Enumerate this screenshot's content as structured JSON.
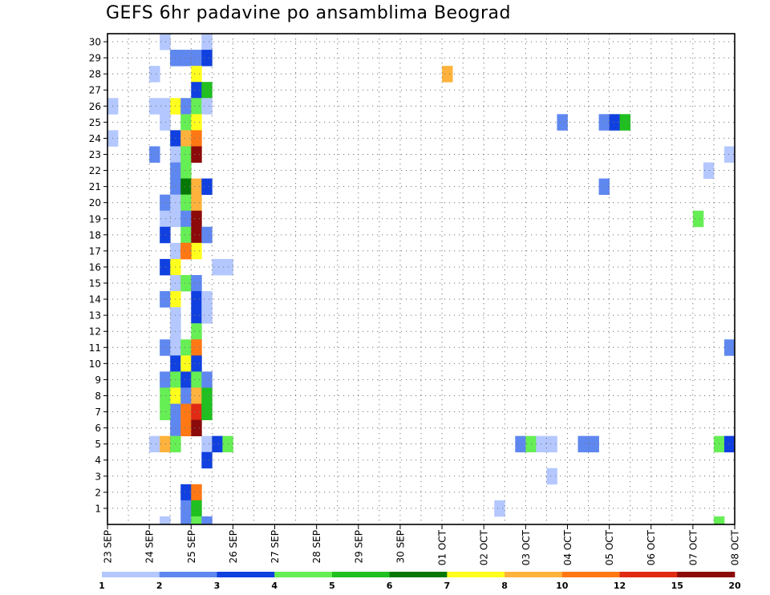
{
  "chart_data": {
    "type": "heatmap",
    "title": "GEFS 6hr padavine po ansamblima Beograd",
    "xlabel": "",
    "ylabel": "",
    "x_ticks": [
      "23 SEP",
      "24 SEP",
      "25 SEP",
      "26 SEP",
      "27 SEP",
      "28 SEP",
      "29 SEP",
      "30 SEP",
      "01 OCT",
      "02 OCT",
      "03 OCT",
      "04 OCT",
      "05 OCT",
      "06 OCT",
      "07 OCT",
      "08 OCT"
    ],
    "y_ticks": [
      1,
      2,
      3,
      4,
      5,
      6,
      7,
      8,
      9,
      10,
      11,
      12,
      13,
      14,
      15,
      16,
      17,
      18,
      19,
      20,
      21,
      22,
      23,
      24,
      25,
      26,
      27,
      28,
      29,
      30
    ],
    "xlim": [
      "23 SEP 00",
      "08 OCT 00"
    ],
    "ylim": [
      0,
      30
    ],
    "grid": true,
    "steps_per_day": 4,
    "color_scale": {
      "levels": [
        1,
        2,
        3,
        4,
        5,
        6,
        7,
        8,
        10,
        12,
        15,
        20
      ],
      "colors": [
        "#b4c8ff",
        "#5f87f0",
        "#1040e0",
        "#66ee55",
        "#20c020",
        "#067806",
        "#ffff1e",
        "#ffb23c",
        "#ff7814",
        "#e02a14",
        "#8c0a0a"
      ]
    },
    "cells": [
      {
        "m": 30,
        "t": "24 SEP 06",
        "v": 1.5
      },
      {
        "m": 30,
        "t": "25 SEP 06",
        "v": 1.5
      },
      {
        "m": 29,
        "t": "24 SEP 12",
        "v": 2.5
      },
      {
        "m": 29,
        "t": "24 SEP 18",
        "v": 2.5
      },
      {
        "m": 29,
        "t": "25 SEP 00",
        "v": 2.5
      },
      {
        "m": 29,
        "t": "25 SEP 06",
        "v": 3.5
      },
      {
        "m": 28,
        "t": "24 SEP 00",
        "v": 1.5
      },
      {
        "m": 28,
        "t": "25 SEP 00",
        "v": 7.5
      },
      {
        "m": 28,
        "t": "01 OCT 00",
        "v": 9
      },
      {
        "m": 27,
        "t": "25 SEP 00",
        "v": 3.5
      },
      {
        "m": 27,
        "t": "25 SEP 06",
        "v": 5.5
      },
      {
        "m": 26,
        "t": "23 SEP 00",
        "v": 1.5
      },
      {
        "m": 26,
        "t": "24 SEP 00",
        "v": 1.5
      },
      {
        "m": 26,
        "t": "24 SEP 06",
        "v": 1.5
      },
      {
        "m": 26,
        "t": "24 SEP 12",
        "v": 7.5
      },
      {
        "m": 26,
        "t": "24 SEP 18",
        "v": 2.5
      },
      {
        "m": 26,
        "t": "25 SEP 00",
        "v": 4.5
      },
      {
        "m": 26,
        "t": "25 SEP 06",
        "v": 1.5
      },
      {
        "m": 25,
        "t": "24 SEP 06",
        "v": 1.5
      },
      {
        "m": 25,
        "t": "24 SEP 18",
        "v": 4.5
      },
      {
        "m": 25,
        "t": "25 SEP 00",
        "v": 7.5
      },
      {
        "m": 25,
        "t": "03 OCT 18",
        "v": 2.5
      },
      {
        "m": 25,
        "t": "04 OCT 18",
        "v": 2.5
      },
      {
        "m": 25,
        "t": "05 OCT 00",
        "v": 3.5
      },
      {
        "m": 25,
        "t": "05 OCT 06",
        "v": 5.5
      },
      {
        "m": 24,
        "t": "23 SEP 00",
        "v": 1.5
      },
      {
        "m": 24,
        "t": "24 SEP 12",
        "v": 3.5
      },
      {
        "m": 24,
        "t": "24 SEP 18",
        "v": 9
      },
      {
        "m": 24,
        "t": "25 SEP 00",
        "v": 11
      },
      {
        "m": 23,
        "t": "24 SEP 00",
        "v": 2.5
      },
      {
        "m": 23,
        "t": "24 SEP 12",
        "v": 1.5
      },
      {
        "m": 23,
        "t": "24 SEP 18",
        "v": 4.5
      },
      {
        "m": 23,
        "t": "25 SEP 00",
        "v": 25
      },
      {
        "m": 23,
        "t": "07 OCT 18",
        "v": 1.5
      },
      {
        "m": 22,
        "t": "24 SEP 12",
        "v": 2.5
      },
      {
        "m": 22,
        "t": "24 SEP 18",
        "v": 4.5
      },
      {
        "m": 22,
        "t": "07 OCT 06",
        "v": 1.5
      },
      {
        "m": 21,
        "t": "24 SEP 12",
        "v": 2.5
      },
      {
        "m": 21,
        "t": "24 SEP 18",
        "v": 6.5
      },
      {
        "m": 21,
        "t": "25 SEP 00",
        "v": 9
      },
      {
        "m": 21,
        "t": "25 SEP 06",
        "v": 3.5
      },
      {
        "m": 21,
        "t": "04 OCT 18",
        "v": 2.5
      },
      {
        "m": 20,
        "t": "24 SEP 06",
        "v": 2.5
      },
      {
        "m": 20,
        "t": "24 SEP 12",
        "v": 1.5
      },
      {
        "m": 20,
        "t": "24 SEP 18",
        "v": 4.5
      },
      {
        "m": 20,
        "t": "25 SEP 00",
        "v": 9
      },
      {
        "m": 19,
        "t": "24 SEP 06",
        "v": 1.5
      },
      {
        "m": 19,
        "t": "24 SEP 12",
        "v": 1.5
      },
      {
        "m": 19,
        "t": "24 SEP 18",
        "v": 2.5
      },
      {
        "m": 19,
        "t": "25 SEP 00",
        "v": 17
      },
      {
        "m": 19,
        "t": "07 OCT 00",
        "v": 4.5
      },
      {
        "m": 18,
        "t": "24 SEP 06",
        "v": 3.5
      },
      {
        "m": 18,
        "t": "24 SEP 18",
        "v": 4.5
      },
      {
        "m": 18,
        "t": "25 SEP 00",
        "v": 17
      },
      {
        "m": 18,
        "t": "25 SEP 06",
        "v": 2.5
      },
      {
        "m": 17,
        "t": "24 SEP 12",
        "v": 1.5
      },
      {
        "m": 17,
        "t": "24 SEP 18",
        "v": 11
      },
      {
        "m": 17,
        "t": "25 SEP 00",
        "v": 7.5
      },
      {
        "m": 16,
        "t": "24 SEP 06",
        "v": 3.5
      },
      {
        "m": 16,
        "t": "24 SEP 12",
        "v": 7.5
      },
      {
        "m": 16,
        "t": "25 SEP 12",
        "v": 1.5
      },
      {
        "m": 16,
        "t": "25 SEP 18",
        "v": 1.5
      },
      {
        "m": 15,
        "t": "24 SEP 12",
        "v": 1.5
      },
      {
        "m": 15,
        "t": "24 SEP 18",
        "v": 4.5
      },
      {
        "m": 15,
        "t": "25 SEP 00",
        "v": 2.5
      },
      {
        "m": 14,
        "t": "24 SEP 06",
        "v": 2.5
      },
      {
        "m": 14,
        "t": "24 SEP 12",
        "v": 7.5
      },
      {
        "m": 14,
        "t": "25 SEP 00",
        "v": 3.5
      },
      {
        "m": 14,
        "t": "25 SEP 06",
        "v": 1.5
      },
      {
        "m": 13,
        "t": "24 SEP 12",
        "v": 1.5
      },
      {
        "m": 13,
        "t": "25 SEP 00",
        "v": 3.5
      },
      {
        "m": 13,
        "t": "25 SEP 06",
        "v": 1.5
      },
      {
        "m": 12,
        "t": "24 SEP 12",
        "v": 1.5
      },
      {
        "m": 12,
        "t": "25 SEP 00",
        "v": 4.5
      },
      {
        "m": 11,
        "t": "24 SEP 06",
        "v": 2.5
      },
      {
        "m": 11,
        "t": "24 SEP 12",
        "v": 1.5
      },
      {
        "m": 11,
        "t": "24 SEP 18",
        "v": 4.5
      },
      {
        "m": 11,
        "t": "25 SEP 00",
        "v": 11
      },
      {
        "m": 11,
        "t": "07 OCT 18",
        "v": 2.5
      },
      {
        "m": 10,
        "t": "24 SEP 12",
        "v": 3.5
      },
      {
        "m": 10,
        "t": "24 SEP 18",
        "v": 7.5
      },
      {
        "m": 10,
        "t": "25 SEP 00",
        "v": 3.5
      },
      {
        "m": 9,
        "t": "24 SEP 06",
        "v": 2.5
      },
      {
        "m": 9,
        "t": "24 SEP 12",
        "v": 4.5
      },
      {
        "m": 9,
        "t": "24 SEP 18",
        "v": 3.5
      },
      {
        "m": 9,
        "t": "25 SEP 00",
        "v": 4.5
      },
      {
        "m": 9,
        "t": "25 SEP 06",
        "v": 2.5
      },
      {
        "m": 8,
        "t": "24 SEP 06",
        "v": 4.5
      },
      {
        "m": 8,
        "t": "24 SEP 12",
        "v": 7.5
      },
      {
        "m": 8,
        "t": "24 SEP 18",
        "v": 2.5
      },
      {
        "m": 8,
        "t": "25 SEP 00",
        "v": 9
      },
      {
        "m": 8,
        "t": "25 SEP 06",
        "v": 5.5
      },
      {
        "m": 7,
        "t": "24 SEP 12",
        "v": 2.5
      },
      {
        "m": 7,
        "t": "24 SEP 18",
        "v": 11
      },
      {
        "m": 7,
        "t": "25 SEP 00",
        "v": 13
      },
      {
        "m": 6,
        "t": "24 SEP 12",
        "v": 2.5
      },
      {
        "m": 5,
        "t": "24 SEP 00",
        "v": 1.5
      },
      {
        "m": 5,
        "t": "24 SEP 06",
        "v": 9
      },
      {
        "m": 5,
        "t": "24 SEP 12",
        "v": 4.5
      },
      {
        "m": 5,
        "t": "25 SEP 06",
        "v": 1.5
      },
      {
        "m": 5,
        "t": "25 SEP 12",
        "v": 3.5
      },
      {
        "m": 5,
        "t": "25 SEP 18",
        "v": 4.5
      },
      {
        "m": 5,
        "t": "02 OCT 18",
        "v": 2.5
      },
      {
        "m": 5,
        "t": "03 OCT 00",
        "v": 4.5
      },
      {
        "m": 5,
        "t": "03 OCT 06",
        "v": 1.5
      },
      {
        "m": 5,
        "t": "03 OCT 12",
        "v": 1.5
      },
      {
        "m": 5,
        "t": "04 OCT 06",
        "v": 2.5
      },
      {
        "m": 5,
        "t": "04 OCT 12",
        "v": 2.5
      },
      {
        "m": 5,
        "t": "07 OCT 12",
        "v": 4.5
      },
      {
        "m": 5,
        "t": "07 OCT 18",
        "v": 3.5
      },
      {
        "m": 4,
        "t": "25 SEP 06",
        "v": 3.5
      },
      {
        "m": 3,
        "t": "03 OCT 12",
        "v": 1.5
      },
      {
        "m": 2,
        "t": "24 SEP 18",
        "v": 3.5
      },
      {
        "m": 2,
        "t": "25 SEP 00",
        "v": 11
      },
      {
        "m": 1,
        "t": "24 SEP 18",
        "v": 2.5
      },
      {
        "m": 1,
        "t": "25 SEP 00",
        "v": 5.5
      },
      {
        "m": 1,
        "t": "02 OCT 06",
        "v": 1.5
      },
      {
        "m": 0,
        "t": "24 SEP 06",
        "v": 1.5
      },
      {
        "m": 0,
        "t": "24 SEP 18",
        "v": 2.5
      },
      {
        "m": 0,
        "t": "25 SEP 00",
        "v": 4.5
      },
      {
        "m": 0,
        "t": "25 SEP 06",
        "v": 2.5
      },
      {
        "m": 0,
        "t": "07 OCT 12",
        "v": 4.5
      }
    ],
    "cells_extra": [
      {
        "m": 6,
        "t": "24 SEP 18",
        "v": 11
      },
      {
        "m": 6,
        "t": "25 SEP 00",
        "v": 17
      },
      {
        "m": 7,
        "t": "24 SEP 06",
        "v": 4.5
      },
      {
        "m": 7,
        "t": "25 SEP 06",
        "v": 5.5
      },
      {
        "m": 17,
        "t": "24 SEP 18",
        "v": 11
      },
      {
        "m": 29,
        "t": "24 SEP 12",
        "v": 2.5
      }
    ]
  }
}
